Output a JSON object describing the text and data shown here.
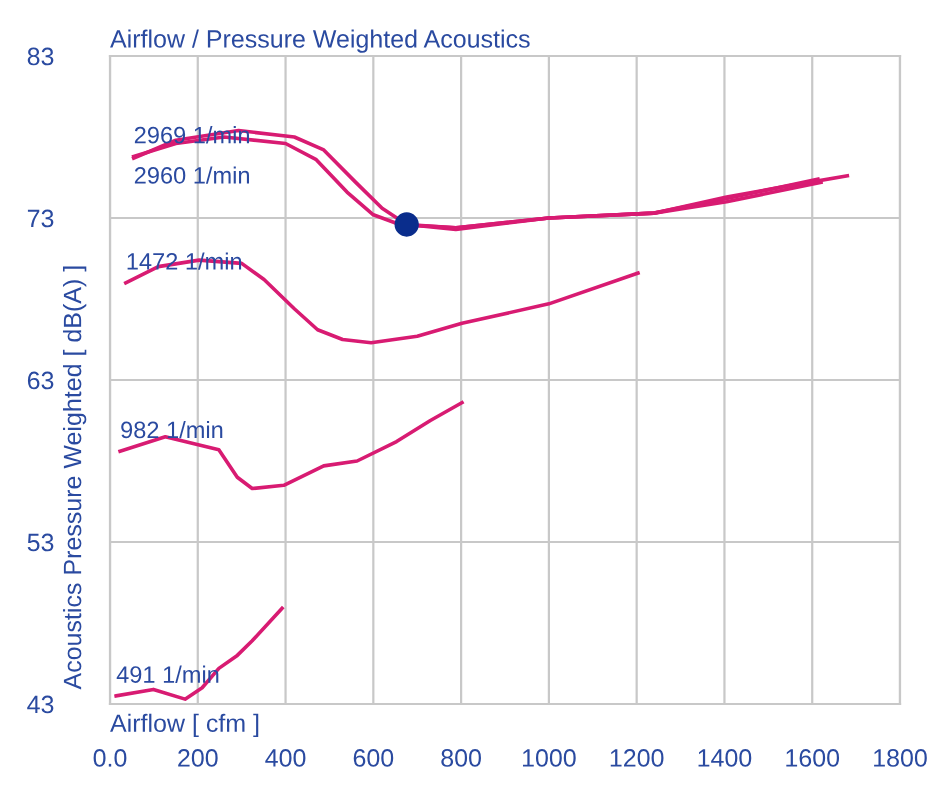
{
  "chart_data": {
    "type": "line",
    "title": "Airflow / Pressure Weighted Acoustics",
    "xlabel": "Airflow [ cfm ]",
    "ylabel": "Acoustics Pressure Weighted [ dB(A) ]",
    "xlim": [
      0,
      1800
    ],
    "ylim": [
      43,
      83
    ],
    "xticks": [
      {
        "value": 0,
        "label": "0.0"
      },
      200,
      400,
      600,
      800,
      1000,
      1200,
      1400,
      1600,
      1800
    ],
    "yticks": [
      43,
      53,
      63,
      73,
      83
    ],
    "grid": true,
    "legend": false,
    "marker": "none",
    "line_style": "solid",
    "series": [
      {
        "name": "2960 1/min",
        "color": "#d81b72",
        "x": [
          54,
          150,
          293,
          420,
          487,
          560,
          620,
          676,
          788,
          1000,
          1239,
          1405,
          1613
        ],
        "values": [
          76.7,
          77.8,
          78.4,
          78.0,
          77.2,
          75.2,
          73.6,
          72.6,
          72.3,
          73.0,
          73.3,
          74.2,
          75.4
        ]
      },
      {
        "name": "2969 1/min",
        "color": "#d81b72",
        "x": [
          54,
          150,
          260,
          400,
          470,
          540,
          600,
          660,
          788,
          1000,
          1239,
          1405,
          1620
        ],
        "values": [
          76.8,
          77.6,
          78.0,
          77.6,
          76.6,
          74.6,
          73.2,
          72.6,
          72.4,
          73.0,
          73.3,
          74.0,
          75.2
        ]
      },
      {
        "color": "#d81b72",
        "x": [
          676,
          788,
          1000,
          1239,
          1405,
          1550,
          1680
        ],
        "values": [
          72.6,
          72.4,
          73.0,
          73.3,
          74.3,
          75.0,
          75.6
        ]
      },
      {
        "name": "1472 1/min",
        "color": "#d81b72",
        "x": [
          36,
          110,
          203,
          300,
          351,
          420,
          473,
          530,
          595,
          700,
          802,
          1000,
          1203
        ],
        "values": [
          69.0,
          70.0,
          70.4,
          70.2,
          69.2,
          67.4,
          66.1,
          65.5,
          65.3,
          65.7,
          66.5,
          67.7,
          69.6
        ]
      },
      {
        "name": "982 1/min",
        "color": "#d81b72",
        "x": [
          23,
          126,
          248,
          290,
          324,
          396,
          487,
          563,
          653,
          730,
          802
        ],
        "values": [
          58.6,
          59.5,
          58.7,
          57.0,
          56.3,
          56.5,
          57.7,
          58.0,
          59.2,
          60.5,
          61.6
        ]
      },
      {
        "name": "491 1/min",
        "color": "#d81b72",
        "x": [
          14,
          99,
          171,
          210,
          248,
          290,
          324,
          392
        ],
        "values": [
          43.5,
          43.9,
          43.3,
          44.0,
          45.2,
          46.0,
          46.9,
          48.9
        ]
      },
      {
        "type": "scatter",
        "color": "#0a2d8c",
        "x": [
          676
        ],
        "values": [
          72.6
        ],
        "marker": "circle"
      }
    ]
  }
}
